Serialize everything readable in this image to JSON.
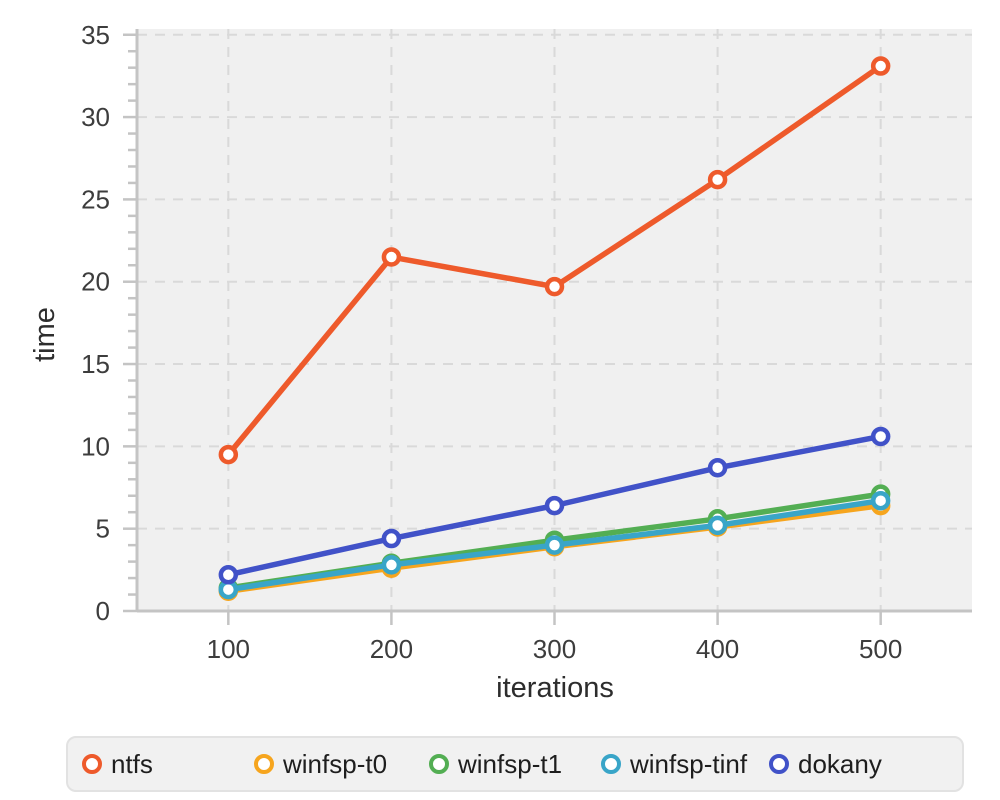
{
  "chart_data": {
    "type": "line",
    "title": "",
    "xlabel": "iterations",
    "ylabel": "time",
    "x": [
      100,
      200,
      300,
      400,
      500
    ],
    "series": [
      {
        "name": "ntfs",
        "color": "#ee5a2b",
        "values": [
          9.5,
          21.5,
          19.7,
          26.2,
          33.1
        ]
      },
      {
        "name": "winfsp-t0",
        "color": "#f6a51e",
        "values": [
          1.2,
          2.6,
          3.9,
          5.1,
          6.4
        ]
      },
      {
        "name": "winfsp-t1",
        "color": "#53ae53",
        "values": [
          1.4,
          2.9,
          4.3,
          5.6,
          7.1
        ]
      },
      {
        "name": "winfsp-tinf",
        "color": "#39a5c8",
        "values": [
          1.3,
          2.8,
          4.0,
          5.2,
          6.7
        ]
      },
      {
        "name": "dokany",
        "color": "#4152c8",
        "values": [
          2.2,
          4.4,
          6.4,
          8.7,
          10.6
        ]
      }
    ],
    "x_ticks": [
      100,
      200,
      300,
      400,
      500
    ],
    "y_ticks": [
      0,
      5,
      10,
      15,
      20,
      25,
      30,
      35
    ],
    "y_minor_tick_step": 1,
    "xlim": [
      44,
      556
    ],
    "ylim": [
      0,
      35.35
    ],
    "grid": "dashed",
    "legend_position": "bottom",
    "colors": {
      "plot_bg": "#f0f0f0",
      "grid": "#d9d9d9",
      "axis": "#c4c4c4",
      "tick_label": "#3d3d3d",
      "axis_title": "#2d2d2d",
      "marker_fill": "#ffffff"
    }
  }
}
